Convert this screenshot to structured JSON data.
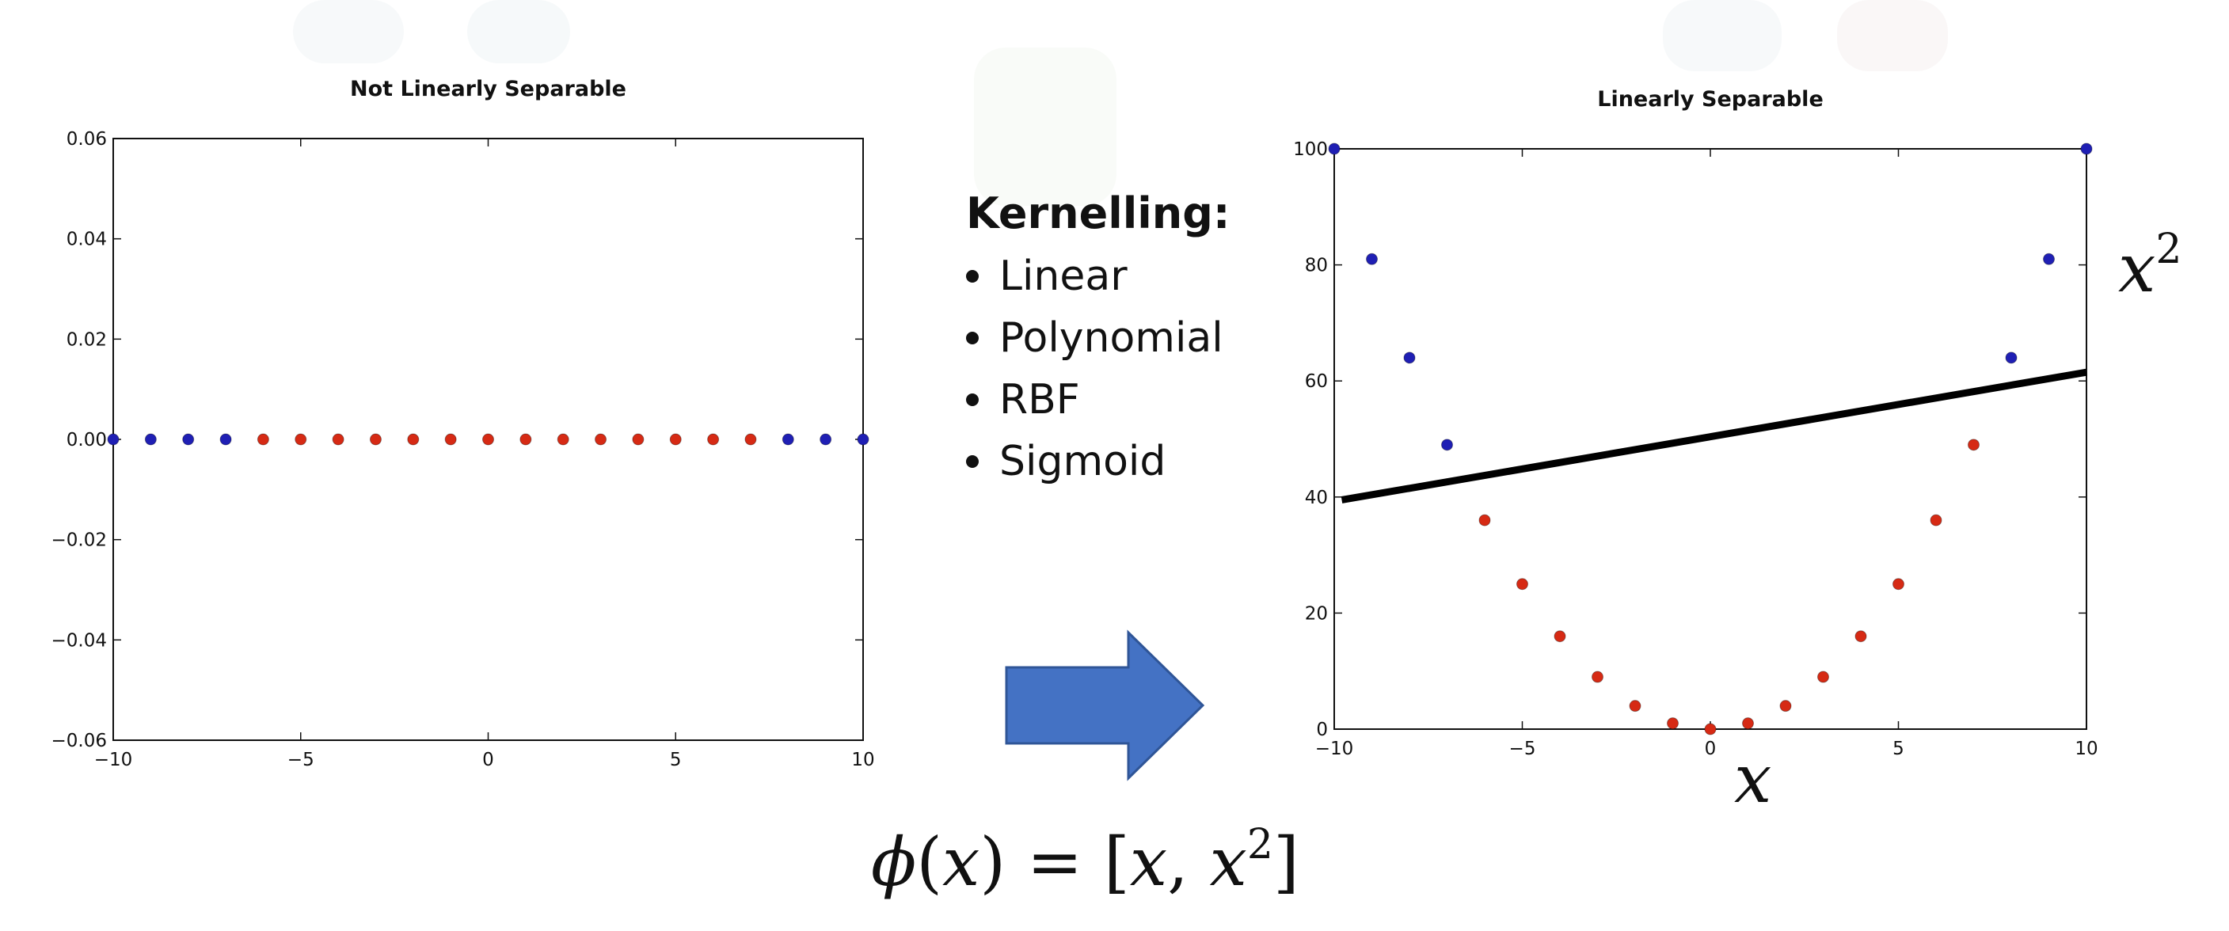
{
  "chart_data": [
    {
      "type": "scatter",
      "title": "Not Linearly Separable",
      "xlabel": "",
      "ylabel": "",
      "xlim": [
        -10,
        10
      ],
      "ylim": [
        -0.06,
        0.06
      ],
      "xticks": [
        -10,
        -5,
        0,
        5,
        10
      ],
      "xtick_labels": [
        "−10",
        "−5",
        "0",
        "5",
        "10"
      ],
      "yticks": [
        -0.06,
        -0.04,
        -0.02,
        0.0,
        0.02,
        0.04,
        0.06
      ],
      "ytick_labels": [
        "−0.06",
        "−0.04",
        "−0.02",
        "0.00",
        "0.02",
        "0.04",
        "0.06"
      ],
      "grid": false,
      "series": [
        {
          "color": "#1f1fb4",
          "x": [
            -10,
            -9,
            -8,
            -7,
            8,
            9,
            10
          ],
          "y": [
            0,
            0,
            0,
            0,
            0,
            0,
            0
          ]
        },
        {
          "color": "#d62a14",
          "x": [
            -6,
            -5,
            -4,
            -3,
            -2,
            -1,
            0,
            1,
            2,
            3,
            4,
            5,
            6,
            7
          ],
          "y": [
            0,
            0,
            0,
            0,
            0,
            0,
            0,
            0,
            0,
            0,
            0,
            0,
            0,
            0
          ]
        }
      ]
    },
    {
      "type": "scatter",
      "title": "Linearly Separable",
      "xlabel": "x",
      "ylabel": "x²",
      "xlim": [
        -10,
        10
      ],
      "ylim": [
        0,
        100
      ],
      "xticks": [
        -10,
        -5,
        0,
        5,
        10
      ],
      "xtick_labels": [
        "−10",
        "−5",
        "0",
        "5",
        "10"
      ],
      "yticks": [
        0,
        20,
        40,
        60,
        80,
        100
      ],
      "ytick_labels": [
        "0",
        "20",
        "40",
        "60",
        "80",
        "100"
      ],
      "grid": false,
      "series": [
        {
          "color": "#1f1fb4",
          "x": [
            -10,
            -9,
            -8,
            -7,
            8,
            9,
            10
          ],
          "y": [
            100,
            81,
            64,
            49,
            64,
            81,
            100
          ]
        },
        {
          "color": "#d62a14",
          "x": [
            -6,
            -5,
            -4,
            -3,
            -2,
            -1,
            0,
            1,
            2,
            3,
            4,
            5,
            6,
            7
          ],
          "y": [
            36,
            25,
            16,
            9,
            4,
            1,
            0,
            1,
            4,
            9,
            16,
            25,
            36,
            49
          ]
        }
      ],
      "separator_line": {
        "color": "#000000",
        "x": [
          -9.8,
          10
        ],
        "y": [
          39.5,
          61.5
        ]
      }
    }
  ],
  "kernelling": {
    "title": "Kernelling:",
    "items": [
      "Linear",
      "Polynomial",
      "RBF",
      "Sigmoid"
    ]
  },
  "arrow": {
    "color": "#4472c4"
  },
  "formula": {
    "phi": "ϕ",
    "open": "(",
    "x": "x",
    "close_eq": ") = [",
    "x1": "x",
    "comma": ", ",
    "x2": "x",
    "exp": "2",
    "end": "]"
  }
}
